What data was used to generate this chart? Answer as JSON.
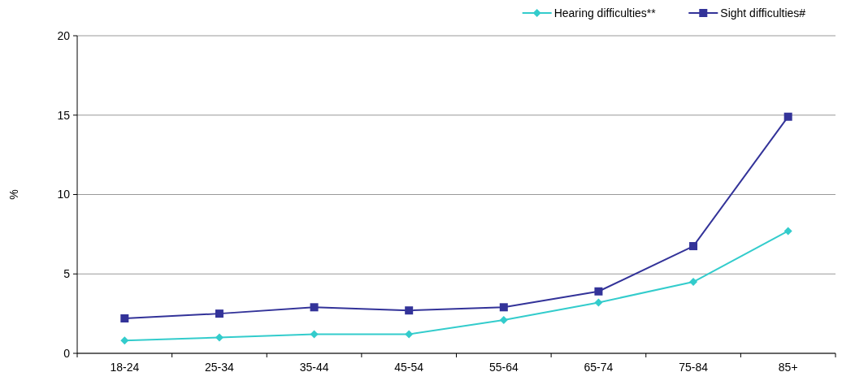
{
  "chart_data": {
    "type": "line",
    "ylabel": "%",
    "categories": [
      "18-24",
      "25-34",
      "35-44",
      "45-54",
      "55-64",
      "65-74",
      "75-84",
      "85+"
    ],
    "series": [
      {
        "name": "Hearing difficulties**",
        "color": "#33cccc",
        "marker": "diamond",
        "values": [
          0.8,
          1.0,
          1.2,
          1.2,
          2.1,
          3.2,
          4.5,
          7.7
        ]
      },
      {
        "name": "Sight difficulties#",
        "color": "#333399",
        "marker": "square",
        "values": [
          2.2,
          2.5,
          2.9,
          2.7,
          2.9,
          3.9,
          6.75,
          14.9
        ]
      }
    ],
    "ylim": [
      0,
      20
    ],
    "yticks": [
      0,
      5,
      10,
      15,
      20
    ],
    "grid": "y",
    "legend": "top right"
  }
}
